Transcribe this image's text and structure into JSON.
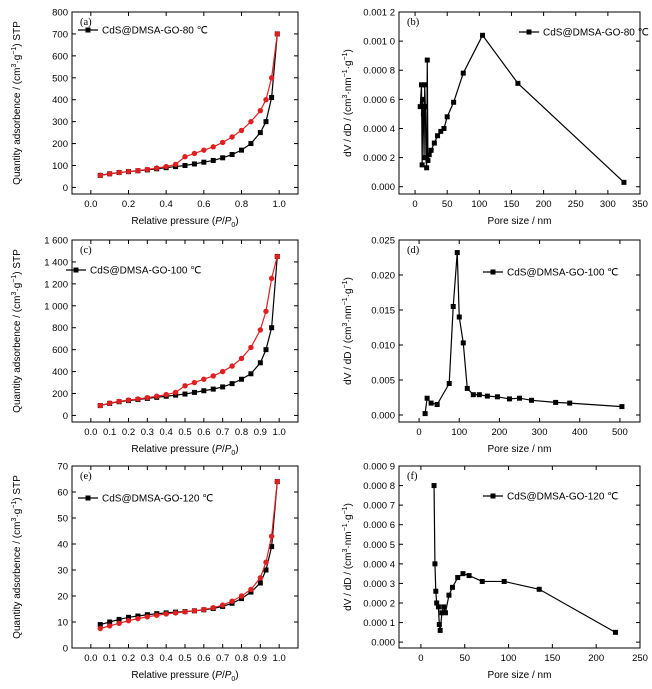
{
  "chart_data": [
    {
      "panel": "(a)",
      "type": "line",
      "xlabel": "Relative pressure (P/P0)",
      "ylabel": "Quantity adsorbence / (cm3·g−1) STP",
      "xlim": [
        -0.1,
        1.1
      ],
      "ylim": [
        -30,
        800
      ],
      "xticks": [
        0.0,
        0.2,
        0.4,
        0.6,
        0.8,
        1.0
      ],
      "xtick_labels": [
        "0.0",
        "0.2",
        "0.4",
        "0.6",
        "0.8",
        "1.0"
      ],
      "yticks": [
        0,
        100,
        200,
        300,
        400,
        500,
        600,
        700,
        800
      ],
      "ytick_labels": [
        "0",
        "100",
        "200",
        "300",
        "400",
        "500",
        "600",
        "700",
        "800"
      ],
      "legend_position": "top-left",
      "series": [
        {
          "name": "CdS@DMSA-GO-80 ℃",
          "color": "#000000",
          "marker": "square",
          "legend": true,
          "x": [
            0.05,
            0.1,
            0.15,
            0.2,
            0.25,
            0.3,
            0.35,
            0.4,
            0.45,
            0.5,
            0.55,
            0.6,
            0.65,
            0.7,
            0.75,
            0.8,
            0.85,
            0.9,
            0.93,
            0.96,
            0.99
          ],
          "y": [
            55,
            62,
            68,
            72,
            76,
            80,
            85,
            90,
            95,
            100,
            107,
            115,
            123,
            135,
            150,
            170,
            200,
            250,
            300,
            410,
            700
          ]
        },
        {
          "name": "desorption",
          "color": "#e02020",
          "marker": "circle",
          "legend": false,
          "x": [
            0.05,
            0.1,
            0.15,
            0.2,
            0.25,
            0.3,
            0.35,
            0.4,
            0.45,
            0.5,
            0.55,
            0.6,
            0.65,
            0.7,
            0.75,
            0.8,
            0.85,
            0.9,
            0.93,
            0.96,
            0.99
          ],
          "y": [
            55,
            62,
            68,
            72,
            77,
            82,
            88,
            95,
            105,
            140,
            155,
            170,
            185,
            205,
            230,
            260,
            300,
            350,
            400,
            500,
            700
          ]
        }
      ]
    },
    {
      "panel": "(b)",
      "type": "line",
      "xlabel": "Pore size / nm",
      "ylabel": "dV / dD / (cm3·nm−1·g−1)",
      "xlim": [
        -25,
        350
      ],
      "ylim": [
        -5e-05,
        0.0012
      ],
      "xticks": [
        0,
        50,
        100,
        150,
        200,
        250,
        300,
        350
      ],
      "xtick_labels": [
        "0",
        "50",
        "100",
        "150",
        "200",
        "250",
        "300",
        "350"
      ],
      "yticks": [
        0.0,
        0.0002,
        0.0004,
        0.0006,
        0.0008,
        0.001,
        0.0012
      ],
      "ytick_labels": [
        "0.000",
        "0.000 2",
        "0.000 4",
        "0.000 6",
        "0.000 8",
        "0.001 0",
        "0.001 2"
      ],
      "legend_position": "top-right",
      "series": [
        {
          "name": "CdS@DMSA-GO-80 ℃",
          "color": "#000000",
          "marker": "square",
          "legend": true,
          "x": [
            8,
            10,
            11,
            12,
            13,
            14,
            15,
            16,
            17,
            18,
            19,
            20,
            22,
            25,
            30,
            35,
            40,
            45,
            50,
            60,
            75,
            105,
            160,
            325
          ],
          "y": [
            0.00055,
            0.0007,
            0.00015,
            0.0006,
            0.0005,
            0.0002,
            0.0007,
            0.00055,
            0.0002,
            0.00013,
            0.00087,
            0.00018,
            0.00022,
            0.00025,
            0.0003,
            0.00035,
            0.00038,
            0.0004,
            0.00048,
            0.00058,
            0.00078,
            0.00104,
            0.00071,
            3e-05
          ]
        }
      ]
    },
    {
      "panel": "(c)",
      "type": "line",
      "xlabel": "Relative pressure (P/P0)",
      "ylabel": "Quantity adsorbence / (cm3·g−1) STP",
      "xlim": [
        -0.1,
        1.1
      ],
      "ylim": [
        -60,
        1600
      ],
      "xticks": [
        0.0,
        0.1,
        0.2,
        0.3,
        0.4,
        0.5,
        0.6,
        0.7,
        0.8,
        0.9,
        1.0
      ],
      "xtick_labels": [
        "0.0",
        "0.1",
        "0.2",
        "0.3",
        "0.4",
        "0.5",
        "0.6",
        "0.7",
        "0.8",
        "0.9",
        "1.0"
      ],
      "yticks": [
        0,
        200,
        400,
        600,
        800,
        1000,
        1200,
        1400,
        1600
      ],
      "ytick_labels": [
        "0",
        "200",
        "400",
        "600",
        "800",
        "1 000",
        "1 200",
        "1 400",
        "1 600"
      ],
      "legend_position": "top-left",
      "series": [
        {
          "name": "CdS@DMSA-GO-100 ℃",
          "color": "#000000",
          "marker": "square",
          "legend": true,
          "x": [
            0.05,
            0.1,
            0.15,
            0.2,
            0.25,
            0.3,
            0.35,
            0.4,
            0.45,
            0.5,
            0.55,
            0.6,
            0.65,
            0.7,
            0.75,
            0.8,
            0.85,
            0.9,
            0.93,
            0.96,
            0.99
          ],
          "y": [
            90,
            110,
            125,
            135,
            145,
            155,
            165,
            175,
            185,
            195,
            210,
            225,
            240,
            260,
            290,
            330,
            380,
            480,
            600,
            800,
            1450
          ]
        },
        {
          "name": "desorption",
          "color": "#e02020",
          "marker": "circle",
          "legend": false,
          "x": [
            0.05,
            0.1,
            0.15,
            0.2,
            0.25,
            0.3,
            0.35,
            0.4,
            0.45,
            0.5,
            0.55,
            0.6,
            0.65,
            0.7,
            0.75,
            0.8,
            0.85,
            0.9,
            0.93,
            0.96,
            0.99
          ],
          "y": [
            90,
            112,
            128,
            140,
            150,
            162,
            175,
            190,
            210,
            270,
            300,
            330,
            360,
            400,
            450,
            520,
            620,
            780,
            950,
            1250,
            1450
          ]
        }
      ]
    },
    {
      "panel": "(d)",
      "type": "line",
      "xlabel": "Pore size / nm",
      "ylabel": "dV / dD / (cm3·nm−1·g−1)",
      "xlim": [
        -50,
        550
      ],
      "ylim": [
        -0.001,
        0.025
      ],
      "xticks": [
        0,
        100,
        200,
        300,
        400,
        500
      ],
      "xtick_labels": [
        "0",
        "100",
        "200",
        "300",
        "400",
        "500"
      ],
      "yticks": [
        0.0,
        0.005,
        0.01,
        0.015,
        0.02,
        0.025
      ],
      "ytick_labels": [
        "0.000",
        "0.005",
        "0.010",
        "0.015",
        "0.020",
        "0.025"
      ],
      "legend_position": "top-right",
      "series": [
        {
          "name": "CdS@DMSA-GO-100 ℃",
          "color": "#000000",
          "marker": "square",
          "legend": true,
          "x": [
            15,
            20,
            30,
            45,
            75,
            85,
            95,
            100,
            110,
            120,
            135,
            150,
            170,
            195,
            225,
            250,
            280,
            340,
            375,
            505
          ],
          "y": [
            0.0002,
            0.0024,
            0.0017,
            0.0015,
            0.0045,
            0.0155,
            0.0232,
            0.014,
            0.0103,
            0.0038,
            0.0029,
            0.0029,
            0.0027,
            0.0026,
            0.0023,
            0.0024,
            0.0021,
            0.0018,
            0.0017,
            0.0012
          ]
        }
      ]
    },
    {
      "panel": "(e)",
      "type": "line",
      "xlabel": "Relative pressure (P/P0)",
      "ylabel": "Quantity adsorbence / (cm3·g−1) STP",
      "xlim": [
        -0.1,
        1.1
      ],
      "ylim": [
        0,
        70
      ],
      "xticks": [
        0.0,
        0.1,
        0.2,
        0.3,
        0.4,
        0.5,
        0.6,
        0.7,
        0.8,
        0.9,
        1.0
      ],
      "xtick_labels": [
        "0.0",
        "0.1",
        "0.2",
        "0.3",
        "0.4",
        "0.5",
        "0.6",
        "0.7",
        "0.8",
        "0.9",
        "1.0"
      ],
      "yticks": [
        0,
        10,
        20,
        30,
        40,
        50,
        60,
        70
      ],
      "ytick_labels": [
        "0",
        "10",
        "20",
        "30",
        "40",
        "50",
        "60",
        "70"
      ],
      "legend_position": "top-left",
      "series": [
        {
          "name": "CdS@DMSA-GO-120 ℃",
          "color": "#000000",
          "marker": "square",
          "legend": true,
          "x": [
            0.05,
            0.1,
            0.15,
            0.2,
            0.25,
            0.3,
            0.35,
            0.4,
            0.45,
            0.5,
            0.55,
            0.6,
            0.65,
            0.7,
            0.75,
            0.8,
            0.85,
            0.9,
            0.93,
            0.96,
            0.99
          ],
          "y": [
            9,
            10,
            11,
            11.8,
            12.3,
            12.8,
            13.2,
            13.5,
            13.8,
            14,
            14.3,
            14.7,
            15.2,
            16,
            17.2,
            19,
            21.5,
            25,
            30,
            39,
            64
          ]
        },
        {
          "name": "desorption",
          "color": "#e02020",
          "marker": "circle",
          "legend": false,
          "x": [
            0.05,
            0.1,
            0.15,
            0.2,
            0.25,
            0.3,
            0.35,
            0.4,
            0.45,
            0.5,
            0.55,
            0.6,
            0.65,
            0.7,
            0.75,
            0.8,
            0.85,
            0.9,
            0.93,
            0.96,
            0.99
          ],
          "y": [
            7.5,
            8.5,
            9.5,
            10.5,
            11.3,
            12,
            12.6,
            13.1,
            13.5,
            13.9,
            14.3,
            14.8,
            15.5,
            16.5,
            18,
            20,
            22.5,
            27,
            33,
            43,
            64
          ]
        }
      ]
    },
    {
      "panel": "(f)",
      "type": "line",
      "xlabel": "Pore size / nm",
      "ylabel": "dV / dD / (cm3·nm−1·g−1)",
      "xlim": [
        -25,
        250
      ],
      "ylim": [
        -3e-05,
        0.0009
      ],
      "xticks": [
        0,
        50,
        100,
        150,
        200,
        250
      ],
      "xtick_labels": [
        "0",
        "50",
        "100",
        "150",
        "200",
        "250"
      ],
      "yticks": [
        0.0,
        0.0001,
        0.0002,
        0.0003,
        0.0004,
        0.0005,
        0.0006,
        0.0007,
        0.0008,
        0.0009
      ],
      "ytick_labels": [
        "0.000",
        "0.000 1",
        "0.000 2",
        "0.000 3",
        "0.000 4",
        "0.000 5",
        "0.000 6",
        "0.000 7",
        "0.000 8",
        "0.000 9"
      ],
      "legend_position": "top-right",
      "series": [
        {
          "name": "CdS@DMSA-GO-120 ℃",
          "color": "#000000",
          "marker": "square",
          "legend": true,
          "x": [
            15,
            16,
            17,
            18,
            20,
            21,
            22,
            24,
            26,
            28,
            32,
            36,
            42,
            48,
            55,
            70,
            95,
            135,
            222
          ],
          "y": [
            0.0008,
            0.0004,
            0.00026,
            0.0002,
            0.00018,
            9e-05,
            6e-05,
            0.00015,
            0.00018,
            0.00015,
            0.00024,
            0.00028,
            0.00033,
            0.00035,
            0.00034,
            0.00031,
            0.00031,
            0.00027,
            5e-05
          ]
        }
      ]
    }
  ],
  "panel_labels": [
    "(a)",
    "(b)",
    "(c)",
    "(d)",
    "(e)",
    "(f)"
  ],
  "legends": [
    "CdS@DMSA-GO-80 ℃",
    "CdS@DMSA-GO-80 ℃",
    "CdS@DMSA-GO-100 ℃",
    "CdS@DMSA-GO-100 ℃",
    "CdS@DMSA-GO-120 ℃",
    "CdS@DMSA-GO-120 ℃"
  ],
  "xlabel_text": {
    "relative": "Relative pressure (",
    "P": "P",
    "slash": "/",
    "P0": "P",
    "zero": "0",
    "close": ")",
    "pore": "Pore size / nm"
  },
  "ylabel_text": {
    "qa": "Quantity adsorbence / (cm",
    "qa_sup1": "3",
    "qa_mid": "·g",
    "qa_sup2": "−1",
    "qa_end": ") STP",
    "dv": "dV / dD / (cm",
    "dv_sup1": "3",
    "dv_mid1": "·nm",
    "dv_sup2": "−1",
    "dv_mid2": "·g",
    "dv_sup3": "−1",
    "dv_end": ")"
  }
}
